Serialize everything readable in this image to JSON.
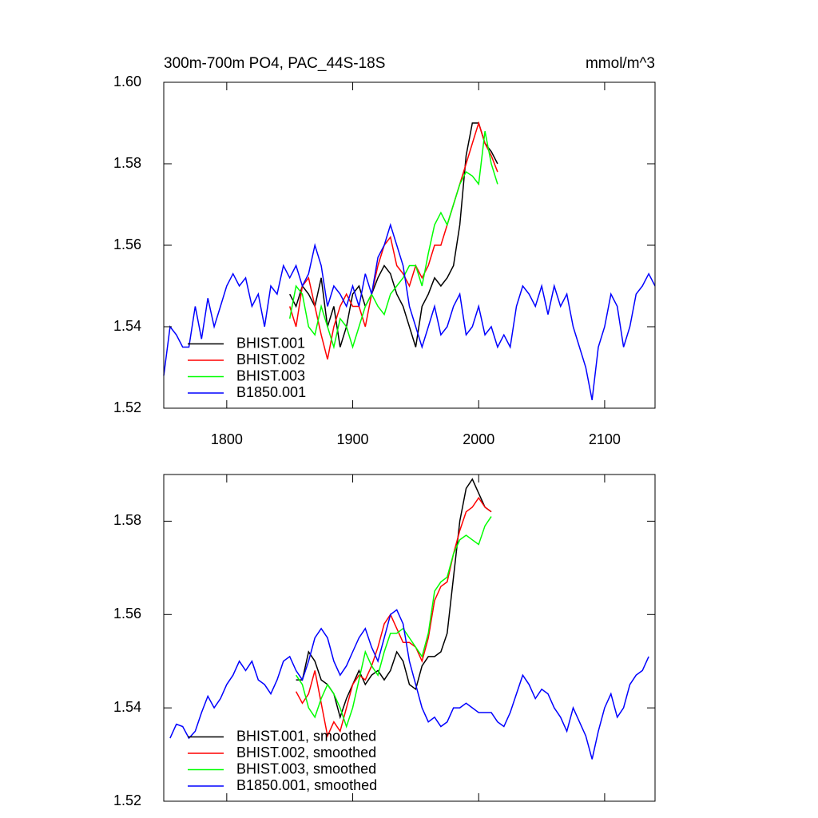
{
  "chart_data": [
    {
      "type": "line",
      "title": "300m-700m PO4, PAC_44S-18S",
      "units": "mmol/m^3",
      "xlim": [
        1750,
        2140
      ],
      "xticks": [
        1800,
        1900,
        2000,
        2100
      ],
      "ylim": [
        1.52,
        1.6
      ],
      "yticks": [
        1.52,
        1.54,
        1.56,
        1.58,
        {
          "value": 1.6,
          "label": "1.60"
        }
      ],
      "legend": "lower left",
      "series": [
        {
          "name": "BHIST.001",
          "color": "#000000",
          "x": [
            1850,
            1855,
            1860,
            1865,
            1870,
            1875,
            1880,
            1885,
            1890,
            1895,
            1900,
            1905,
            1910,
            1915,
            1920,
            1925,
            1930,
            1935,
            1940,
            1945,
            1950,
            1955,
            1960,
            1965,
            1970,
            1975,
            1980,
            1985,
            1990,
            1995,
            2000,
            2005,
            2010,
            2015
          ],
          "values": [
            1.548,
            1.545,
            1.55,
            1.548,
            1.545,
            1.552,
            1.54,
            1.545,
            1.535,
            1.54,
            1.548,
            1.55,
            1.545,
            1.548,
            1.552,
            1.555,
            1.553,
            1.548,
            1.545,
            1.54,
            1.535,
            1.545,
            1.548,
            1.552,
            1.55,
            1.552,
            1.555,
            1.565,
            1.582,
            1.59,
            1.59,
            1.585,
            1.583,
            1.58
          ]
        },
        {
          "name": "BHIST.002",
          "color": "#ff0000",
          "x": [
            1850,
            1855,
            1860,
            1865,
            1870,
            1875,
            1880,
            1885,
            1890,
            1895,
            1900,
            1905,
            1910,
            1915,
            1920,
            1925,
            1930,
            1935,
            1940,
            1945,
            1950,
            1955,
            1960,
            1965,
            1970,
            1975,
            1980,
            1985,
            1990,
            1995,
            2000,
            2005,
            2010,
            2015
          ],
          "values": [
            1.545,
            1.54,
            1.55,
            1.552,
            1.545,
            1.538,
            1.532,
            1.54,
            1.545,
            1.548,
            1.545,
            1.545,
            1.54,
            1.548,
            1.555,
            1.56,
            1.562,
            1.555,
            1.553,
            1.55,
            1.555,
            1.552,
            1.555,
            1.56,
            1.56,
            1.565,
            1.57,
            1.575,
            1.58,
            1.585,
            1.59,
            1.585,
            1.582,
            1.578
          ]
        },
        {
          "name": "BHIST.003",
          "color": "#00ff00",
          "x": [
            1850,
            1855,
            1860,
            1865,
            1870,
            1875,
            1880,
            1885,
            1890,
            1895,
            1900,
            1905,
            1910,
            1915,
            1920,
            1925,
            1930,
            1935,
            1940,
            1945,
            1950,
            1955,
            1960,
            1965,
            1970,
            1975,
            1980,
            1985,
            1990,
            1995,
            2000,
            2005,
            2010,
            2015
          ],
          "values": [
            1.542,
            1.55,
            1.548,
            1.54,
            1.538,
            1.545,
            1.54,
            1.535,
            1.542,
            1.54,
            1.535,
            1.54,
            1.545,
            1.548,
            1.545,
            1.543,
            1.548,
            1.55,
            1.552,
            1.555,
            1.555,
            1.55,
            1.558,
            1.565,
            1.568,
            1.565,
            1.57,
            1.575,
            1.578,
            1.577,
            1.575,
            1.588,
            1.58,
            1.575
          ]
        },
        {
          "name": "B1850.001",
          "color": "#0000ff",
          "x": [
            1750,
            1755,
            1760,
            1765,
            1770,
            1775,
            1780,
            1785,
            1790,
            1795,
            1800,
            1805,
            1810,
            1815,
            1820,
            1825,
            1830,
            1835,
            1840,
            1845,
            1850,
            1855,
            1860,
            1865,
            1870,
            1875,
            1880,
            1885,
            1890,
            1895,
            1900,
            1905,
            1910,
            1915,
            1920,
            1925,
            1930,
            1935,
            1940,
            1945,
            1950,
            1955,
            1960,
            1965,
            1970,
            1975,
            1980,
            1985,
            1990,
            1995,
            2000,
            2005,
            2010,
            2015,
            2020,
            2025,
            2030,
            2035,
            2040,
            2045,
            2050,
            2055,
            2060,
            2065,
            2070,
            2075,
            2080,
            2085,
            2090,
            2095,
            2100,
            2105,
            2110,
            2115,
            2120,
            2125,
            2130,
            2135,
            2140
          ],
          "values": [
            1.528,
            1.54,
            1.538,
            1.535,
            1.535,
            1.545,
            1.537,
            1.547,
            1.54,
            1.545,
            1.55,
            1.553,
            1.55,
            1.552,
            1.545,
            1.548,
            1.54,
            1.55,
            1.548,
            1.555,
            1.552,
            1.555,
            1.55,
            1.553,
            1.56,
            1.555,
            1.545,
            1.55,
            1.548,
            1.545,
            1.55,
            1.545,
            1.553,
            1.548,
            1.557,
            1.56,
            1.565,
            1.56,
            1.555,
            1.545,
            1.54,
            1.535,
            1.54,
            1.545,
            1.538,
            1.54,
            1.545,
            1.548,
            1.538,
            1.54,
            1.545,
            1.538,
            1.54,
            1.535,
            1.538,
            1.535,
            1.545,
            1.55,
            1.548,
            1.545,
            1.55,
            1.543,
            1.55,
            1.545,
            1.548,
            1.54,
            1.535,
            1.53,
            1.522,
            1.535,
            1.54,
            1.548,
            1.545,
            1.535,
            1.54,
            1.548,
            1.55,
            1.553,
            1.55
          ]
        }
      ]
    },
    {
      "type": "line",
      "xlim": [
        1750,
        2140
      ],
      "xticks": [
        1800,
        1900,
        2000,
        2100
      ],
      "xtick_labels": false,
      "ylim": [
        1.52,
        1.59
      ],
      "yticks": [
        1.52,
        1.54,
        1.56,
        1.58
      ],
      "legend": "lower left",
      "series": [
        {
          "name": "BHIST.001, smoothed",
          "color": "#000000",
          "x": [
            1855,
            1860,
            1865,
            1870,
            1875,
            1880,
            1885,
            1890,
            1895,
            1900,
            1905,
            1910,
            1915,
            1920,
            1925,
            1930,
            1935,
            1940,
            1945,
            1950,
            1955,
            1960,
            1965,
            1970,
            1975,
            1980,
            1985,
            1990,
            1995,
            2000,
            2005,
            2010
          ],
          "values": [
            1.546,
            1.546,
            1.552,
            1.55,
            1.546,
            1.545,
            1.543,
            1.538,
            1.542,
            1.545,
            1.548,
            1.545,
            1.547,
            1.548,
            1.546,
            1.548,
            1.552,
            1.55,
            1.545,
            1.544,
            1.549,
            1.551,
            1.551,
            1.552,
            1.556,
            1.568,
            1.58,
            1.587,
            1.589,
            1.586,
            1.583,
            1.582
          ]
        },
        {
          "name": "BHIST.002, smoothed",
          "color": "#ff0000",
          "x": [
            1855,
            1860,
            1865,
            1870,
            1875,
            1880,
            1885,
            1890,
            1895,
            1900,
            1905,
            1910,
            1915,
            1920,
            1925,
            1930,
            1935,
            1940,
            1945,
            1950,
            1955,
            1960,
            1965,
            1970,
            1975,
            1980,
            1985,
            1990,
            1995,
            2000,
            2005,
            2010
          ],
          "values": [
            1.5435,
            1.541,
            1.543,
            1.548,
            1.541,
            1.534,
            1.537,
            1.535,
            1.54,
            1.545,
            1.547,
            1.546,
            1.549,
            1.553,
            1.558,
            1.56,
            1.557,
            1.554,
            1.554,
            1.553,
            1.55,
            1.555,
            1.563,
            1.566,
            1.567,
            1.573,
            1.578,
            1.582,
            1.583,
            1.585,
            1.583,
            1.582
          ]
        },
        {
          "name": "BHIST.003, smoothed",
          "color": "#00ff00",
          "x": [
            1855,
            1860,
            1865,
            1870,
            1875,
            1880,
            1885,
            1890,
            1895,
            1900,
            1905,
            1910,
            1915,
            1920,
            1925,
            1930,
            1935,
            1940,
            1945,
            1950,
            1955,
            1960,
            1965,
            1970,
            1975,
            1980,
            1985,
            1990,
            1995,
            2000,
            2005,
            2010
          ],
          "values": [
            1.547,
            1.545,
            1.54,
            1.538,
            1.542,
            1.545,
            1.543,
            1.54,
            1.536,
            1.54,
            1.546,
            1.552,
            1.549,
            1.547,
            1.552,
            1.556,
            1.556,
            1.557,
            1.555,
            1.553,
            1.551,
            1.556,
            1.565,
            1.567,
            1.568,
            1.573,
            1.576,
            1.577,
            1.576,
            1.575,
            1.579,
            1.581
          ]
        },
        {
          "name": "B1850.001, smoothed",
          "color": "#0000ff",
          "x": [
            1755,
            1760,
            1765,
            1770,
            1775,
            1780,
            1785,
            1790,
            1795,
            1800,
            1805,
            1810,
            1815,
            1820,
            1825,
            1830,
            1835,
            1840,
            1845,
            1850,
            1855,
            1860,
            1865,
            1870,
            1875,
            1880,
            1885,
            1890,
            1895,
            1900,
            1905,
            1910,
            1915,
            1920,
            1925,
            1930,
            1935,
            1940,
            1945,
            1950,
            1955,
            1960,
            1965,
            1970,
            1975,
            1980,
            1985,
            1990,
            1995,
            2000,
            2005,
            2010,
            2015,
            2020,
            2025,
            2030,
            2035,
            2040,
            2045,
            2050,
            2055,
            2060,
            2065,
            2070,
            2075,
            2080,
            2085,
            2090,
            2095,
            2100,
            2105,
            2110,
            2115,
            2120,
            2125,
            2130,
            2135
          ],
          "values": [
            1.5335,
            1.5365,
            1.536,
            1.5335,
            1.535,
            1.539,
            1.5425,
            1.54,
            1.542,
            1.545,
            1.547,
            1.55,
            1.548,
            1.55,
            1.546,
            1.545,
            1.543,
            1.546,
            1.55,
            1.551,
            1.548,
            1.546,
            1.55,
            1.555,
            1.557,
            1.555,
            1.55,
            1.547,
            1.549,
            1.552,
            1.555,
            1.557,
            1.553,
            1.55,
            1.555,
            1.56,
            1.561,
            1.558,
            1.55,
            1.545,
            1.54,
            1.537,
            1.538,
            1.536,
            1.537,
            1.54,
            1.54,
            1.541,
            1.54,
            1.539,
            1.539,
            1.539,
            1.537,
            1.536,
            1.539,
            1.543,
            1.547,
            1.545,
            1.542,
            1.544,
            1.543,
            1.54,
            1.538,
            1.535,
            1.54,
            1.537,
            1.534,
            1.529,
            1.535,
            1.54,
            1.543,
            1.538,
            1.54,
            1.545,
            1.547,
            1.548,
            1.551
          ]
        }
      ]
    }
  ]
}
